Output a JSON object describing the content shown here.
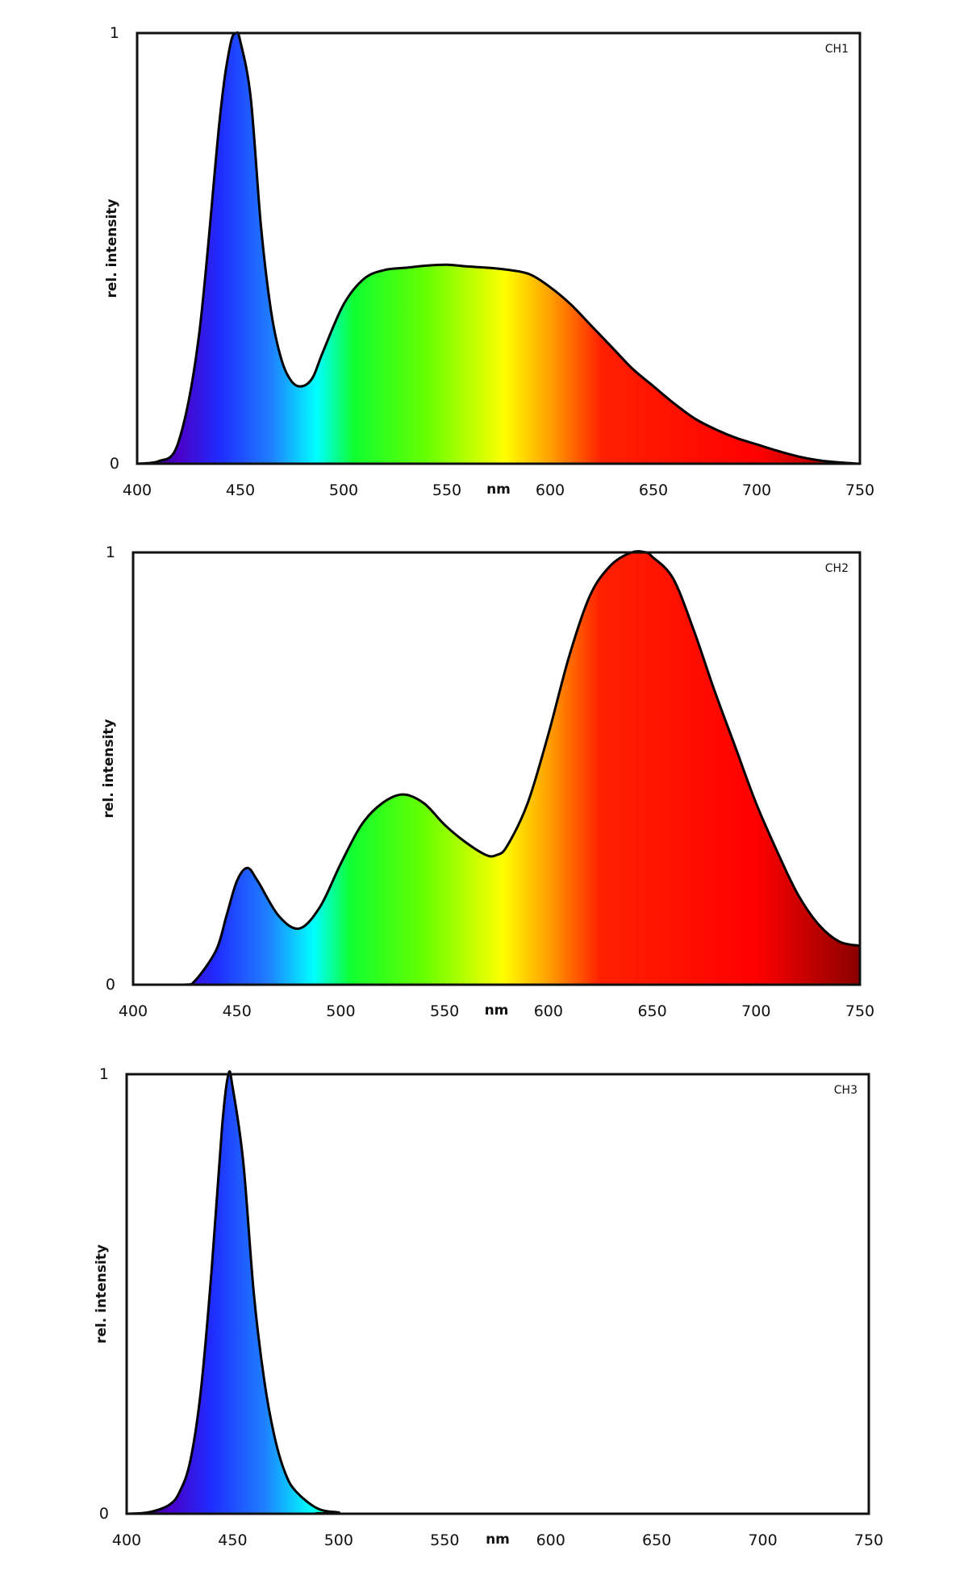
{
  "chart_data": [
    {
      "type": "area",
      "label": "CH1",
      "xlabel": "nm",
      "ylabel": "rel. intensity",
      "xlim": [
        400,
        750
      ],
      "ylim": [
        0,
        1
      ],
      "xticks": [
        "400",
        "450",
        "500",
        "550",
        "600",
        "650",
        "700",
        "750"
      ],
      "yticks": [
        "0",
        "1"
      ],
      "grid": false,
      "fill": "spectral gradient",
      "x": [
        400,
        410,
        420,
        430,
        440,
        445,
        448,
        450,
        455,
        460,
        465,
        470,
        475,
        480,
        485,
        490,
        500,
        510,
        520,
        530,
        540,
        550,
        560,
        570,
        580,
        590,
        600,
        610,
        620,
        630,
        640,
        650,
        660,
        670,
        680,
        690,
        700,
        710,
        720,
        730,
        740,
        750
      ],
      "y": [
        0,
        0.005,
        0.05,
        0.3,
        0.8,
        0.97,
        1.0,
        0.98,
        0.85,
        0.55,
        0.35,
        0.24,
        0.19,
        0.18,
        0.2,
        0.26,
        0.37,
        0.43,
        0.45,
        0.455,
        0.46,
        0.462,
        0.458,
        0.455,
        0.45,
        0.44,
        0.41,
        0.37,
        0.32,
        0.27,
        0.22,
        0.18,
        0.14,
        0.105,
        0.08,
        0.06,
        0.045,
        0.03,
        0.017,
        0.008,
        0.003,
        0
      ]
    },
    {
      "type": "area",
      "label": "CH2",
      "xlabel": "nm",
      "ylabel": "rel. intensity",
      "xlim": [
        400,
        750
      ],
      "ylim": [
        0,
        1
      ],
      "xticks": [
        "400",
        "450",
        "500",
        "550",
        "600",
        "650",
        "700",
        "750"
      ],
      "yticks": [
        "0",
        "1"
      ],
      "grid": false,
      "fill": "spectral gradient",
      "x": [
        400,
        425,
        430,
        440,
        445,
        450,
        455,
        460,
        470,
        480,
        490,
        500,
        510,
        520,
        530,
        540,
        550,
        560,
        570,
        575,
        580,
        590,
        600,
        610,
        620,
        630,
        640,
        647,
        650,
        660,
        670,
        680,
        690,
        700,
        710,
        720,
        730,
        740,
        750
      ],
      "y": [
        0,
        0,
        0.01,
        0.08,
        0.16,
        0.24,
        0.27,
        0.24,
        0.16,
        0.13,
        0.18,
        0.28,
        0.37,
        0.42,
        0.44,
        0.42,
        0.37,
        0.33,
        0.3,
        0.3,
        0.32,
        0.42,
        0.58,
        0.76,
        0.9,
        0.97,
        1.0,
        1.0,
        0.99,
        0.94,
        0.82,
        0.68,
        0.55,
        0.42,
        0.31,
        0.21,
        0.14,
        0.1,
        0.09
      ]
    },
    {
      "type": "area",
      "label": "CH3",
      "xlabel": "nm",
      "ylabel": "rel. intensity",
      "xlim": [
        400,
        750
      ],
      "ylim": [
        0,
        1
      ],
      "xticks": [
        "400",
        "450",
        "500",
        "550",
        "600",
        "650",
        "700",
        "750"
      ],
      "yticks": [
        "0",
        "1"
      ],
      "grid": false,
      "fill": "spectral gradient",
      "x": [
        400,
        410,
        420,
        425,
        430,
        435,
        440,
        445,
        448,
        450,
        455,
        460,
        465,
        470,
        475,
        480,
        490,
        500,
        510,
        750
      ],
      "y": [
        0,
        0.003,
        0.02,
        0.05,
        0.12,
        0.28,
        0.55,
        0.88,
        1.0,
        0.97,
        0.8,
        0.5,
        0.3,
        0.17,
        0.09,
        0.05,
        0.012,
        0.003,
        0,
        0
      ]
    }
  ],
  "colors": {
    "spectrum": [
      {
        "nm": 400,
        "color": "#2a0060"
      },
      {
        "nm": 420,
        "color": "#4b00c8"
      },
      {
        "nm": 440,
        "color": "#1f2cff"
      },
      {
        "nm": 465,
        "color": "#1f7fff"
      },
      {
        "nm": 487,
        "color": "#00ffff"
      },
      {
        "nm": 505,
        "color": "#10ff30"
      },
      {
        "nm": 540,
        "color": "#66ff00"
      },
      {
        "nm": 578,
        "color": "#ffff00"
      },
      {
        "nm": 600,
        "color": "#ffa000"
      },
      {
        "nm": 625,
        "color": "#ff2000"
      },
      {
        "nm": 700,
        "color": "#ff0000"
      },
      {
        "nm": 750,
        "color": "#8a0000"
      }
    ],
    "line": "#000000"
  }
}
